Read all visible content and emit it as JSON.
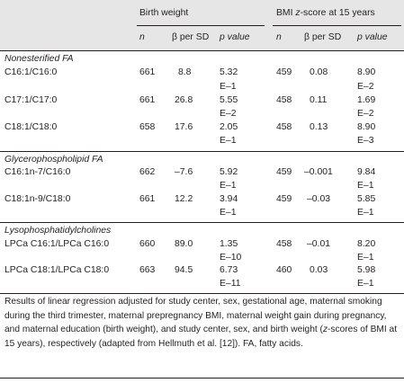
{
  "table": {
    "group_headers": {
      "birth_weight": "Birth weight",
      "bmi": "BMI z-score at 15 years"
    },
    "bmi_header_parts": [
      "BMI ",
      "z",
      "-score at 15 years"
    ],
    "column_headers": {
      "n1": "n",
      "beta1": "β per SD",
      "p1": "p value",
      "n2": "n",
      "beta2": "β per SD",
      "p2": "p value"
    },
    "sections": [
      {
        "title": "Nonesterified FA",
        "rows": [
          {
            "label": "C16:1/C16:0",
            "n1": "661",
            "beta1": "8.8",
            "p1": [
              "5.32",
              "E–1"
            ],
            "n2": "459",
            "beta2": "0.08",
            "p2": [
              "8.90",
              "E–2"
            ]
          },
          {
            "label": "C17:1/C17:0",
            "n1": "661",
            "beta1": "26.8",
            "p1": [
              "5.55",
              "E–2"
            ],
            "n2": "458",
            "beta2": "0.11",
            "p2": [
              "1.69",
              "E–2"
            ]
          },
          {
            "label": "C18:1/C18:0",
            "n1": "658",
            "beta1": "17.6",
            "p1": [
              "2.05",
              "E–1"
            ],
            "n2": "458",
            "beta2": "0.13",
            "p2": [
              "8.90",
              "E–3"
            ]
          }
        ]
      },
      {
        "title": "Glycerophospholipid FA",
        "rows": [
          {
            "label": "C16:1n-7/C16:0",
            "n1": "662",
            "beta1": "–7.6",
            "p1": [
              "5.92",
              "E–1"
            ],
            "n2": "459",
            "beta2": "–0.001",
            "p2": [
              "9.84",
              "E–1"
            ]
          },
          {
            "label": "C18:1n-9/C18:0",
            "n1": "661",
            "beta1": "12.2",
            "p1": [
              "3.94",
              "E–1"
            ],
            "n2": "459",
            "beta2": "–0.03",
            "p2": [
              "5.85",
              "E–1"
            ]
          }
        ]
      },
      {
        "title": "Lysophosphatidylcholines",
        "rows": [
          {
            "label": "LPCa C16:1/LPCa C16:0",
            "n1": "660",
            "beta1": "89.0",
            "p1": [
              "1.35",
              "E–10"
            ],
            "n2": "458",
            "beta2": "–0.01",
            "p2": [
              "8.20",
              "E–1"
            ]
          },
          {
            "label": "LPCa C18:1/LPCa C18:0",
            "n1": "663",
            "beta1": "94.5",
            "p1": [
              "6.73",
              "E–11"
            ],
            "n2": "460",
            "beta2": "0.03",
            "p2": [
              "5.98",
              "E–1"
            ]
          }
        ]
      }
    ]
  },
  "caption": {
    "part1": "Results of linear regression adjusted for study center, sex, gestational age, maternal smoking during the third trimester, maternal prepregnancy BMI, maternal weight gain during pregnancy, and maternal education (birth weight), and study center, sex, and birth weight (",
    "italic": "z",
    "part2": "-scores of BMI at 15 years), respectively (adapted from Hellmuth et al. [12]). FA, fatty acids."
  }
}
